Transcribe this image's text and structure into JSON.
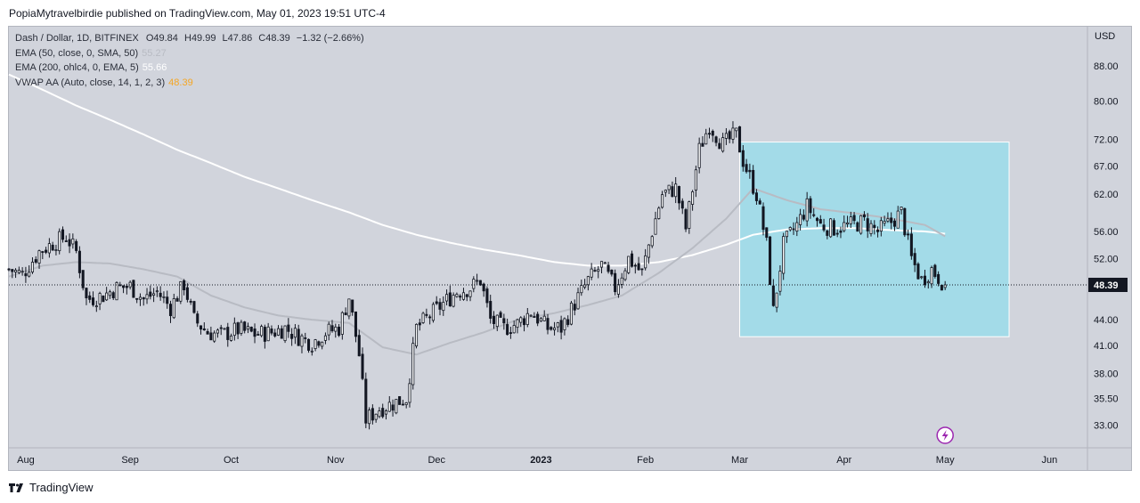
{
  "header": {
    "published_text": "PopiaMytravelbirdie published on TradingView.com, May 01, 2023 19:51 UTC-4"
  },
  "legend": {
    "symbol_line": "Dash / Dollar, 1D, BITFINEX",
    "ohlc": {
      "o_label": "O",
      "o": "49.84",
      "h_label": "H",
      "h": "49.99",
      "l_label": "L",
      "l": "47.86",
      "c_label": "C",
      "c": "48.39",
      "change": "−1.32 (−2.66%)"
    },
    "indicators": [
      {
        "label": "EMA (50, close, 0, SMA, 50)",
        "value": "55.27",
        "color": "#b8bbc3"
      },
      {
        "label": "EMA (200, ohlc4, 0, EMA, 5)",
        "value": "55.66",
        "color": "#ffffff"
      },
      {
        "label": "VWAP AA (Auto, close, 14, 1, 2, 3)",
        "value": "48.39",
        "color": "#f5a623"
      }
    ]
  },
  "footer": {
    "brand": "TradingView"
  },
  "colors": {
    "background": "#d1d4dc",
    "candle": "#131722",
    "ema50": "#b8bbc3",
    "ema200": "#ffffff",
    "box_fill": "#a3dbe8",
    "price_label_bg": "#131722"
  },
  "chart_data": {
    "type": "candlestick",
    "symbol": "Dash / Dollar, 1D, BITFINEX",
    "y_scale": "log",
    "ylim": [
      31.0,
      98.0
    ],
    "currency_label": "USD",
    "y_ticks": [
      "88.00",
      "80.00",
      "72.00",
      "67.00",
      "62.00",
      "56.00",
      "52.00",
      "44.00",
      "41.00",
      "38.00",
      "35.50",
      "33.00"
    ],
    "x_ticks": [
      "Aug",
      "Sep",
      "Oct",
      "Nov",
      "Dec",
      "2023",
      "Feb",
      "Mar",
      "Apr",
      "May",
      "Jun"
    ],
    "x_range": [
      "2022-07-27",
      "2023-06-12"
    ],
    "last_price": 48.39,
    "last_price_label": "48.39",
    "close_path": [
      [
        "2022-07-27",
        50.5
      ],
      [
        "2022-07-31",
        49.8
      ],
      [
        "2022-08-05",
        53.0
      ],
      [
        "2022-08-10",
        54.5
      ],
      [
        "2022-08-13",
        55.2
      ],
      [
        "2022-08-16",
        53.0
      ],
      [
        "2022-08-19",
        46.5
      ],
      [
        "2022-08-24",
        47.0
      ],
      [
        "2022-08-28",
        48.0
      ],
      [
        "2022-09-01",
        48.2
      ],
      [
        "2022-09-05",
        46.5
      ],
      [
        "2022-09-09",
        47.5
      ],
      [
        "2022-09-13",
        45.5
      ],
      [
        "2022-09-17",
        48.5
      ],
      [
        "2022-09-20",
        44.0
      ],
      [
        "2022-09-24",
        42.5
      ],
      [
        "2022-09-28",
        42.2
      ],
      [
        "2022-10-03",
        42.8
      ],
      [
        "2022-10-08",
        42.3
      ],
      [
        "2022-10-13",
        42.5
      ],
      [
        "2022-10-17",
        43.0
      ],
      [
        "2022-10-21",
        42.0
      ],
      [
        "2022-10-25",
        41.3
      ],
      [
        "2022-10-29",
        42.5
      ],
      [
        "2022-11-02",
        43.0
      ],
      [
        "2022-11-05",
        46.8
      ],
      [
        "2022-11-08",
        40.0
      ],
      [
        "2022-11-10",
        33.5
      ],
      [
        "2022-11-14",
        34.5
      ],
      [
        "2022-11-18",
        35.0
      ],
      [
        "2022-11-22",
        35.5
      ],
      [
        "2022-11-25",
        43.0
      ],
      [
        "2022-11-29",
        44.5
      ],
      [
        "2022-12-03",
        46.0
      ],
      [
        "2022-12-07",
        47.5
      ],
      [
        "2022-12-11",
        48.0
      ],
      [
        "2022-12-14",
        49.0
      ],
      [
        "2022-12-17",
        44.0
      ],
      [
        "2022-12-21",
        43.0
      ],
      [
        "2022-12-25",
        43.5
      ],
      [
        "2022-12-29",
        45.0
      ],
      [
        "2023-01-03",
        43.0
      ],
      [
        "2023-01-07",
        43.0
      ],
      [
        "2023-01-11",
        46.0
      ],
      [
        "2023-01-15",
        49.0
      ],
      [
        "2023-01-19",
        51.0
      ],
      [
        "2023-01-23",
        48.0
      ],
      [
        "2023-01-27",
        52.0
      ],
      [
        "2023-01-31",
        50.0
      ],
      [
        "2023-02-03",
        56.0
      ],
      [
        "2023-02-06",
        62.0
      ],
      [
        "2023-02-10",
        63.0
      ],
      [
        "2023-02-13",
        56.5
      ],
      [
        "2023-02-17",
        70.0
      ],
      [
        "2023-02-20",
        75.0
      ],
      [
        "2023-02-24",
        71.0
      ],
      [
        "2023-02-28",
        73.0
      ],
      [
        "2023-03-02",
        68.0
      ],
      [
        "2023-03-06",
        62.0
      ],
      [
        "2023-03-09",
        54.0
      ],
      [
        "2023-03-11",
        45.0
      ],
      [
        "2023-03-14",
        54.0
      ],
      [
        "2023-03-18",
        57.0
      ],
      [
        "2023-03-21",
        60.0
      ],
      [
        "2023-03-25",
        57.0
      ],
      [
        "2023-03-29",
        56.5
      ],
      [
        "2023-04-03",
        57.0
      ],
      [
        "2023-04-07",
        57.5
      ],
      [
        "2023-04-11",
        56.0
      ],
      [
        "2023-04-15",
        57.5
      ],
      [
        "2023-04-18",
        59.0
      ],
      [
        "2023-04-21",
        52.0
      ],
      [
        "2023-04-24",
        49.0
      ],
      [
        "2023-04-27",
        50.5
      ],
      [
        "2023-05-01",
        48.39
      ]
    ],
    "ema50_path": [
      [
        "2022-07-27",
        49.5
      ],
      [
        "2022-08-06",
        51.0
      ],
      [
        "2022-08-16",
        51.5
      ],
      [
        "2022-08-26",
        51.3
      ],
      [
        "2022-09-05",
        50.5
      ],
      [
        "2022-09-15",
        49.5
      ],
      [
        "2022-09-25",
        47.0
      ],
      [
        "2022-10-05",
        45.5
      ],
      [
        "2022-10-15",
        44.5
      ],
      [
        "2022-10-25",
        44.0
      ],
      [
        "2022-11-05",
        43.6
      ],
      [
        "2022-11-15",
        40.8
      ],
      [
        "2022-11-25",
        40.0
      ],
      [
        "2022-12-05",
        41.3
      ],
      [
        "2022-12-15",
        42.5
      ],
      [
        "2022-12-25",
        44.0
      ],
      [
        "2023-01-05",
        44.8
      ],
      [
        "2023-01-15",
        45.8
      ],
      [
        "2023-01-25",
        47.0
      ],
      [
        "2023-02-05",
        50.0
      ],
      [
        "2023-02-15",
        53.5
      ],
      [
        "2023-02-25",
        58.0
      ],
      [
        "2023-03-05",
        63.0
      ],
      [
        "2023-03-15",
        61.0
      ],
      [
        "2023-03-25",
        59.5
      ],
      [
        "2023-04-05",
        58.8
      ],
      [
        "2023-04-15",
        58.0
      ],
      [
        "2023-04-25",
        57.0
      ],
      [
        "2023-05-01",
        55.27
      ]
    ],
    "ema200_path": [
      [
        "2022-07-27",
        86.0
      ],
      [
        "2022-08-06",
        82.5
      ],
      [
        "2022-08-16",
        79.0
      ],
      [
        "2022-08-26",
        76.0
      ],
      [
        "2022-09-05",
        73.0
      ],
      [
        "2022-09-15",
        70.0
      ],
      [
        "2022-09-25",
        67.5
      ],
      [
        "2022-10-05",
        65.0
      ],
      [
        "2022-10-15",
        63.0
      ],
      [
        "2022-10-25",
        61.0
      ],
      [
        "2022-11-05",
        59.0
      ],
      [
        "2022-11-15",
        57.0
      ],
      [
        "2022-11-25",
        55.5
      ],
      [
        "2022-12-05",
        54.3
      ],
      [
        "2022-12-15",
        53.3
      ],
      [
        "2022-12-25",
        52.5
      ],
      [
        "2023-01-05",
        51.5
      ],
      [
        "2023-01-15",
        51.0
      ],
      [
        "2023-01-25",
        51.0
      ],
      [
        "2023-02-05",
        51.5
      ],
      [
        "2023-02-15",
        52.5
      ],
      [
        "2023-02-25",
        54.0
      ],
      [
        "2023-03-05",
        55.5
      ],
      [
        "2023-03-15",
        56.3
      ],
      [
        "2023-03-25",
        56.5
      ],
      [
        "2023-04-05",
        56.5
      ],
      [
        "2023-04-15",
        56.2
      ],
      [
        "2023-04-25",
        56.0
      ],
      [
        "2023-05-01",
        55.66
      ]
    ],
    "box": {
      "start": "2023-03-01",
      "end": "2023-05-20",
      "top": 71.5,
      "bottom": 42.0
    }
  }
}
